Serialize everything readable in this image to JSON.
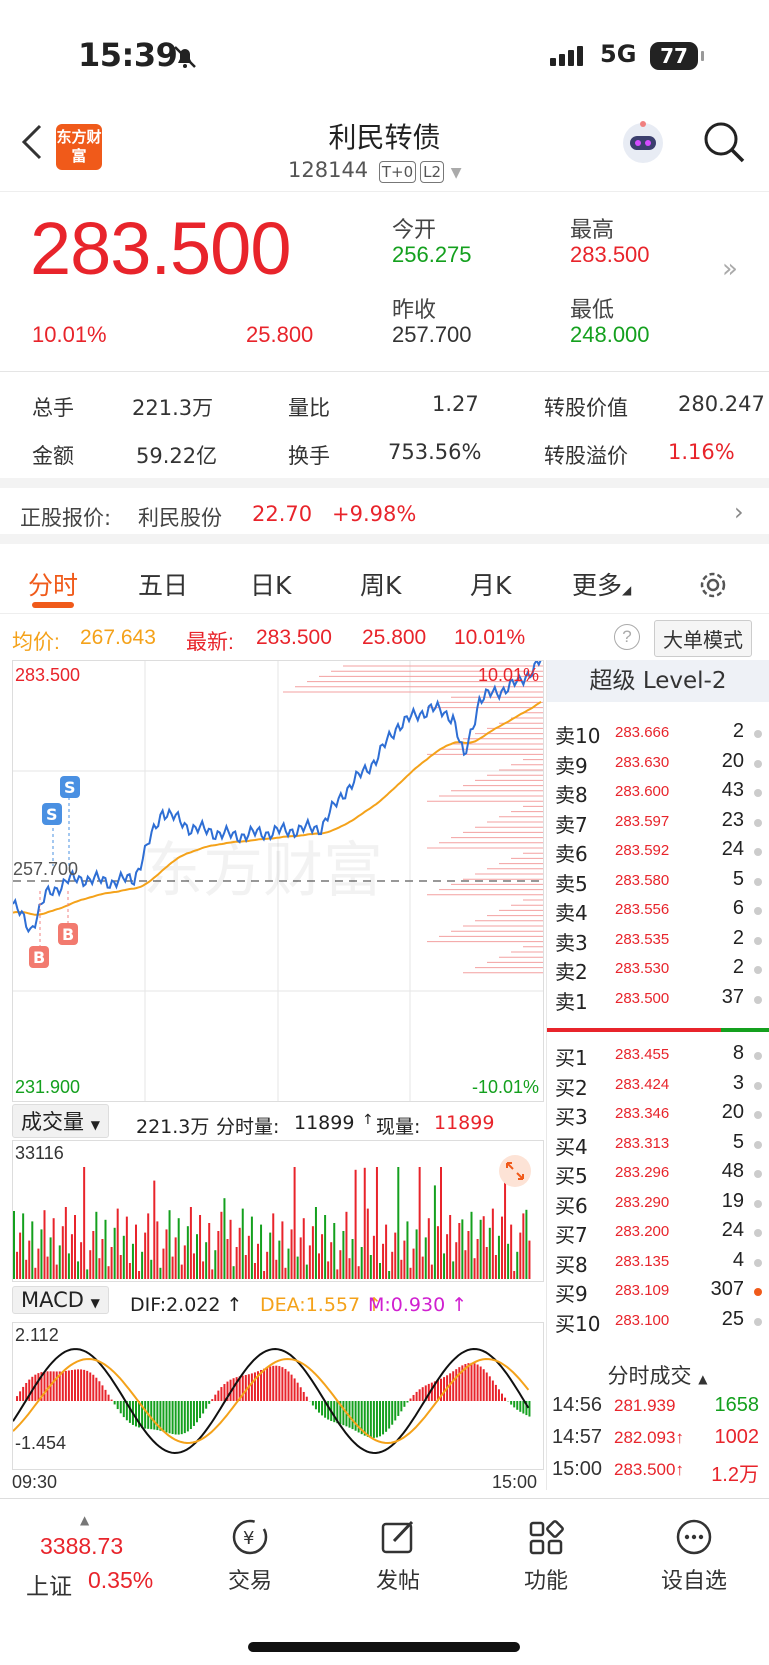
{
  "status": {
    "time": "15:39",
    "network": "5G",
    "battery": "77"
  },
  "nav": {
    "logo": "东方财富",
    "title": "利民转债",
    "code": "128144",
    "tag1": "T+0",
    "tag2": "L2"
  },
  "quote": {
    "price": "283.500",
    "pct": "10.01%",
    "change": "25.800",
    "open_label": "今开",
    "open": "256.275",
    "high_label": "最高",
    "high": "283.500",
    "prev_label": "昨收",
    "prev": "257.700",
    "low_label": "最低",
    "low": "248.000"
  },
  "stats": {
    "vol_label": "总手",
    "vol": "221.3万",
    "ratio_label": "量比",
    "ratio": "1.27",
    "conv_label": "转股价值",
    "conv": "280.247",
    "amt_label": "金额",
    "amt": "59.22亿",
    "turn_label": "换手",
    "turn": "753.56%",
    "prem_label": "转股溢价",
    "prem": "1.16%"
  },
  "underlying": {
    "label": "正股报价:",
    "name": "利民股份",
    "price": "22.70",
    "pct": "+9.98%"
  },
  "tabs": [
    "分时",
    "五日",
    "日K",
    "周K",
    "月K",
    "更多"
  ],
  "avgline": {
    "avg_label": "均价:",
    "avg": "267.643",
    "last_label": "最新:",
    "last": "283.500",
    "chg": "25.800",
    "pct": "10.01%",
    "mode": "大单模式"
  },
  "chart": {
    "top": "283.500",
    "mid": "257.700",
    "bottom": "231.900",
    "top_pct": "10.01%",
    "bot_pct": "-10.01%",
    "watermark": "东方财富"
  },
  "chart_data": {
    "type": "line",
    "series": [
      {
        "name": "均价"
      },
      {
        "name": "最新"
      }
    ],
    "ylim": [
      231.9,
      283.5
    ],
    "prev_close": 257.7,
    "last": 283.5,
    "avg": 267.643
  },
  "vol": {
    "menu": "成交量",
    "total": "221.3万",
    "seg_label": "分时量:",
    "seg": "11899",
    "now_label": "现量:",
    "now": "11899",
    "max": "33116"
  },
  "macd": {
    "menu": "MACD",
    "dif": "DIF:2.022 ↑",
    "dea": "DEA:1.557 ↑",
    "m": "M:0.930 ↑",
    "hi": "2.112",
    "lo": "-1.454",
    "t0": "09:30",
    "t1": "15:00"
  },
  "book": {
    "title": "超级 Level-2",
    "asks": [
      [
        "卖10",
        "283.666",
        "2"
      ],
      [
        "卖9",
        "283.630",
        "20"
      ],
      [
        "卖8",
        "283.600",
        "43"
      ],
      [
        "卖7",
        "283.597",
        "23"
      ],
      [
        "卖6",
        "283.592",
        "24"
      ],
      [
        "卖5",
        "283.580",
        "5"
      ],
      [
        "卖4",
        "283.556",
        "6"
      ],
      [
        "卖3",
        "283.535",
        "2"
      ],
      [
        "卖2",
        "283.530",
        "2"
      ],
      [
        "卖1",
        "283.500",
        "37"
      ]
    ],
    "bids": [
      [
        "买1",
        "283.455",
        "8"
      ],
      [
        "买2",
        "283.424",
        "3"
      ],
      [
        "买3",
        "283.346",
        "20"
      ],
      [
        "买4",
        "283.313",
        "5"
      ],
      [
        "买5",
        "283.296",
        "48"
      ],
      [
        "买6",
        "283.290",
        "19"
      ],
      [
        "买7",
        "283.200",
        "24"
      ],
      [
        "买8",
        "283.135",
        "4"
      ],
      [
        "买9",
        "283.109",
        "307"
      ],
      [
        "买10",
        "283.100",
        "25"
      ]
    ],
    "ticks_title": "分时成交",
    "ticks": [
      [
        "14:56",
        "281.939",
        "1658"
      ],
      [
        "14:57",
        "282.093↑",
        "1002"
      ],
      [
        "15:00",
        "283.500↑",
        "1.2万"
      ]
    ]
  },
  "bottom": {
    "index": "3388.73",
    "index_name": "上证",
    "index_pct": "0.35%",
    "trade": "交易",
    "post": "发帖",
    "func": "功能",
    "watch": "设自选"
  }
}
